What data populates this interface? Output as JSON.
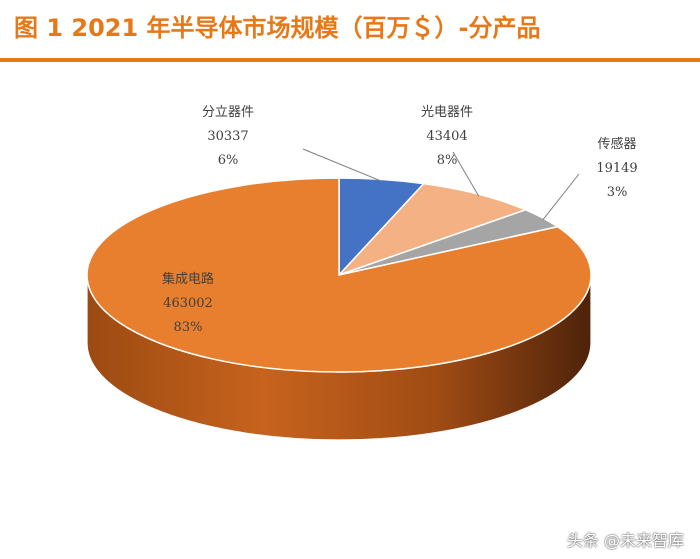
{
  "title": "图 1 2021 年半导体市场规模（百万＄）-分产品",
  "watermark": "头条 @未来智库",
  "chart_data": {
    "type": "pie",
    "title": "图 1 2021 年半导体市场规模（百万＄）-分产品",
    "slices": [
      {
        "label": "分立器件",
        "value": 30337,
        "percent": "6%",
        "color": "#4472c4"
      },
      {
        "label": "光电器件",
        "value": 43404,
        "percent": "8%",
        "color": "#f4b183"
      },
      {
        "label": "传感器",
        "value": 19149,
        "percent": "3%",
        "color": "#a5a5a5"
      },
      {
        "label": "集成电路",
        "value": 463002,
        "percent": "83%",
        "color": "#e77f2e"
      }
    ],
    "start_angle": "12 o'clock",
    "direction": "clockwise",
    "style": "3d-tilted"
  }
}
